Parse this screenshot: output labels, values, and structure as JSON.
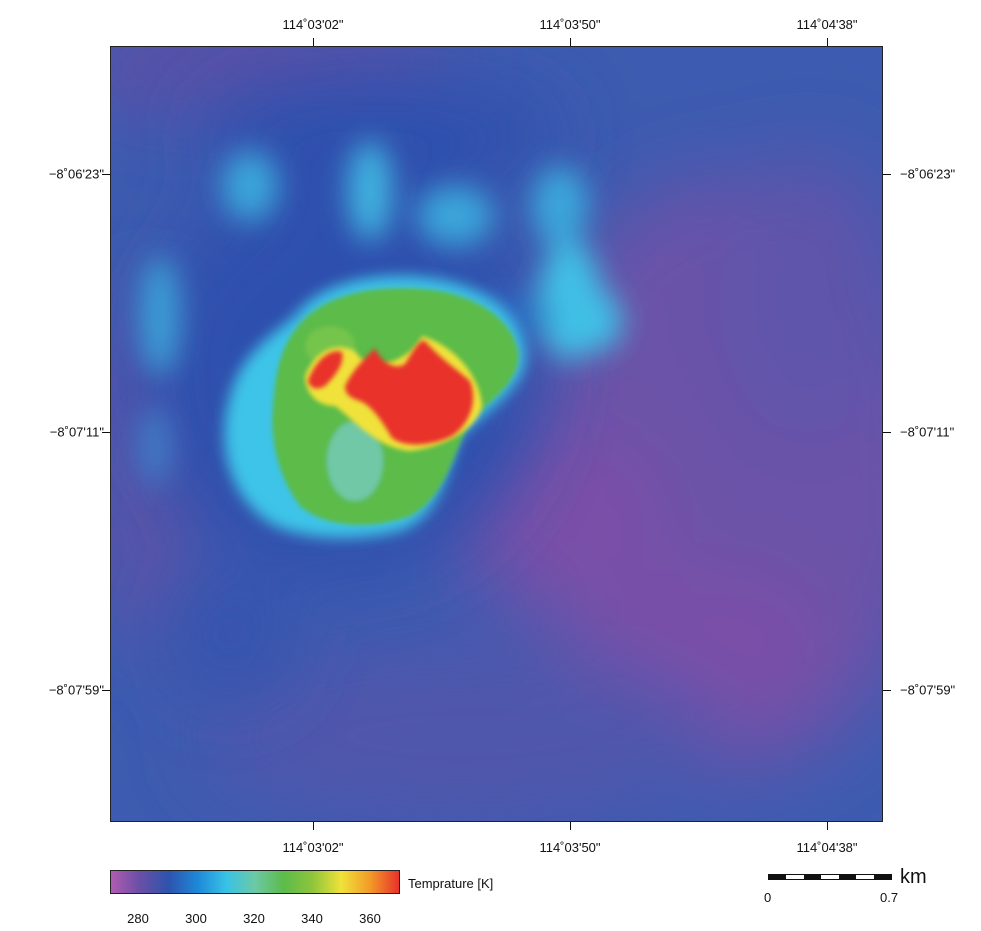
{
  "map": {
    "lon_labels": [
      "114˚03'02\"",
      "114˚03'50\"",
      "114˚04'38\""
    ],
    "lat_labels": [
      "−8˚06'23\"",
      "−8˚07'11\"",
      "−8˚07'59\""
    ],
    "background_color": "#3d5bb0",
    "hotspot_color": "#e8322a"
  },
  "colorbar": {
    "title": "Temprature [K]",
    "tick_labels": [
      "280",
      "300",
      "320",
      "340",
      "360"
    ],
    "tick_values": [
      280,
      300,
      320,
      340,
      360
    ],
    "range": [
      270,
      370
    ],
    "stops": [
      "#b05cb2",
      "#6a4fa6",
      "#2e53ad",
      "#1e88d8",
      "#38c2e6",
      "#6cc9a5",
      "#5cbb4a",
      "#8ec53b",
      "#f0e23a",
      "#f29a28",
      "#e8322a"
    ]
  },
  "scalebar": {
    "unit": "km",
    "min_label": "0",
    "max_label": "0.7"
  }
}
